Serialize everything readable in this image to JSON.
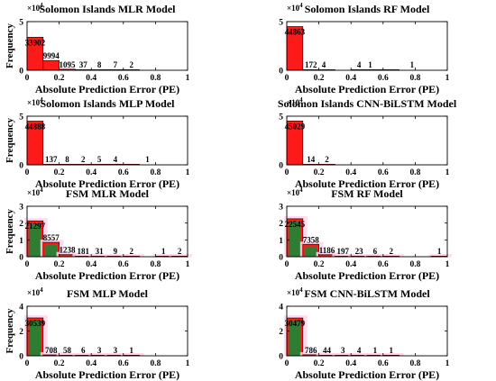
{
  "chart_data": [
    {
      "type": "bar",
      "title": "Solomon Islands MLR Model",
      "xlabel": "Absolute Prediction Error (PE)",
      "ylabel": "Frequency",
      "y_exponent_label": "×10",
      "y_exponent": "4",
      "xlim": [
        0,
        1
      ],
      "xticks": [
        "0",
        "0.2",
        "0.4",
        "0.6",
        "0.8",
        "1"
      ],
      "ylim": [
        0,
        50000
      ],
      "yticks": [
        "0",
        "5"
      ],
      "bin_width": 0.1,
      "bins": [
        0.05,
        0.15,
        0.25,
        0.35,
        0.45,
        0.55,
        0.65
      ],
      "values": [
        33902,
        9994,
        1095,
        37,
        8,
        7,
        2
      ],
      "labels": [
        "33902",
        "9994",
        "1095",
        "37",
        "8",
        "7",
        "2"
      ],
      "style": "plain"
    },
    {
      "type": "bar",
      "title": "Solomon Islands RF Model",
      "xlabel": "Absolute Prediction Error (PE)",
      "ylabel": "",
      "y_exponent_label": "×10",
      "y_exponent": "4",
      "xlim": [
        0,
        1
      ],
      "xticks": [
        "0",
        "0.2",
        "0.4",
        "0.6",
        "0.8",
        "1"
      ],
      "ylim": [
        0,
        50000
      ],
      "yticks": [
        "0",
        "5"
      ],
      "bin_width": 0.1,
      "bins": [
        0.05,
        0.15,
        0.25,
        0.35,
        0.45,
        0.55,
        0.65
      ],
      "values": [
        44863,
        172,
        4,
        0,
        4,
        1,
        1
      ],
      "labels": [
        "44863",
        "172",
        "4",
        "",
        "4",
        "1",
        "1"
      ],
      "label_x": [
        0.05,
        0.15,
        0.23,
        0.35,
        0.45,
        0.52,
        0.78
      ],
      "style": "plain"
    },
    {
      "type": "bar",
      "title": "Solomon Islands MLP Model",
      "xlabel": "Absolute Prediction Error (PE)",
      "ylabel": "Frequency",
      "y_exponent_label": "×10",
      "y_exponent": "4",
      "xlim": [
        0,
        1
      ],
      "xticks": [
        "0",
        "0.2",
        "0.4",
        "0.6",
        "0.8",
        "1"
      ],
      "ylim": [
        0,
        50000
      ],
      "yticks": [
        "0",
        "5"
      ],
      "bin_width": 0.1,
      "bins": [
        0.05,
        0.15,
        0.25,
        0.35,
        0.45,
        0.55,
        0.65
      ],
      "values": [
        44888,
        137,
        8,
        2,
        5,
        4,
        1
      ],
      "labels": [
        "44888",
        "137",
        "8",
        "2",
        "5",
        "4",
        "1"
      ],
      "label_x": [
        0.05,
        0.15,
        0.25,
        0.35,
        0.45,
        0.55,
        0.75
      ],
      "style": "plain"
    },
    {
      "type": "bar",
      "title": "Solomon Islands CNN-BiLSTM Model",
      "xlabel": "Absolute Prediction Error (PE)",
      "ylabel": "",
      "y_exponent_label": "×10",
      "y_exponent": "4",
      "xlim": [
        0,
        1
      ],
      "xticks": [
        "0",
        "0.2",
        "0.4",
        "0.6",
        "0.8",
        "1"
      ],
      "ylim": [
        0,
        50000
      ],
      "yticks": [
        "0",
        "5"
      ],
      "bin_width": 0.1,
      "bins": [
        0.05,
        0.15,
        0.25
      ],
      "values": [
        45029,
        14,
        2
      ],
      "labels": [
        "45029",
        "14",
        "2"
      ],
      "style": "plain"
    },
    {
      "type": "bar",
      "title": "FSM MLR Model",
      "xlabel": "Absolute Prediction Error (PE)",
      "ylabel": "Frequency",
      "y_exponent_label": "×10",
      "y_exponent": "4",
      "xlim": [
        0,
        1
      ],
      "xticks": [
        "0",
        "0.2",
        "0.4",
        "0.6",
        "0.8",
        "1"
      ],
      "ylim": [
        0,
        30000
      ],
      "yticks": [
        "0",
        "1",
        "2",
        "3"
      ],
      "bin_width": 0.1,
      "bins": [
        0.05,
        0.15,
        0.25,
        0.35,
        0.45,
        0.55,
        0.65,
        0.75,
        0.85,
        0.95
      ],
      "values": [
        21297,
        8557,
        1238,
        181,
        31,
        9,
        2,
        0,
        1,
        2
      ],
      "labels": [
        "21297",
        "8557",
        "1238",
        "181",
        "31",
        "9",
        "2",
        "",
        "1",
        "2"
      ],
      "style": "shaded"
    },
    {
      "type": "bar",
      "title": "FSM RF Model",
      "xlabel": "Absolute Prediction Error (PE)",
      "ylabel": "",
      "y_exponent_label": "×10",
      "y_exponent": "4",
      "xlim": [
        0,
        1
      ],
      "xticks": [
        "0",
        "0.2",
        "0.4",
        "0.6",
        "0.8",
        "1"
      ],
      "ylim": [
        0,
        30000
      ],
      "yticks": [
        "0",
        "1",
        "2",
        "3"
      ],
      "bin_width": 0.1,
      "bins": [
        0.05,
        0.15,
        0.25,
        0.35,
        0.45,
        0.55,
        0.65,
        0.75,
        0.85,
        0.95
      ],
      "values": [
        22545,
        7358,
        1186,
        197,
        23,
        6,
        2,
        0,
        0,
        1
      ],
      "labels": [
        "22545",
        "7358",
        "1186",
        "197",
        "23",
        "6",
        "2",
        "",
        "",
        "1"
      ],
      "style": "shaded"
    },
    {
      "type": "bar",
      "title": "FSM MLP Model",
      "xlabel": "Absolute Prediction Error (PE)",
      "ylabel": "Frequency",
      "y_exponent_label": "×10",
      "y_exponent": "4",
      "xlim": [
        0,
        1
      ],
      "xticks": [
        "0",
        "0.2",
        "0.4",
        "0.6",
        "0.8",
        "1"
      ],
      "ylim": [
        0,
        40000
      ],
      "yticks": [
        "0",
        "2",
        "4"
      ],
      "bin_width": 0.1,
      "bins": [
        0.05,
        0.15,
        0.25,
        0.35,
        0.45,
        0.55,
        0.65
      ],
      "values": [
        30539,
        708,
        58,
        6,
        3,
        3,
        1
      ],
      "labels": [
        "30539",
        "708",
        "58",
        "6",
        "3",
        "3",
        "1"
      ],
      "style": "shaded"
    },
    {
      "type": "bar",
      "title": "FSM CNN-BiLSTM Model",
      "xlabel": "Absolute Prediction Error (PE)",
      "ylabel": "",
      "y_exponent_label": "×10",
      "y_exponent": "4",
      "xlim": [
        0,
        1
      ],
      "xticks": [
        "0",
        "0.2",
        "0.4",
        "0.6",
        "0.8",
        "1"
      ],
      "ylim": [
        0,
        40000
      ],
      "yticks": [
        "0",
        "2",
        "4"
      ],
      "bin_width": 0.1,
      "bins": [
        0.05,
        0.15,
        0.25,
        0.35,
        0.45,
        0.55,
        0.65
      ],
      "values": [
        30479,
        786,
        44,
        3,
        4,
        1,
        1
      ],
      "labels": [
        "30479",
        "786",
        "44",
        "3",
        "4",
        "1",
        "1"
      ],
      "style": "shaded"
    }
  ],
  "colors": {
    "bar_fill": "#ff1a1a",
    "bar_stroke": "#5a0000",
    "bar_core": "#2e7d32",
    "bar_shadow": "#ffd6f0",
    "axis": "#000000"
  }
}
